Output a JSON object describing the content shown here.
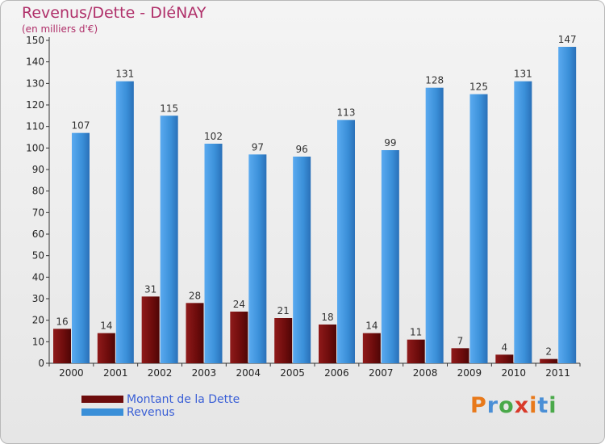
{
  "chart_data": {
    "type": "bar",
    "title": "Revenus/Dette - DIéNAY",
    "unit_label": "(en milliers d'€)",
    "categories": [
      "2000",
      "2001",
      "2002",
      "2003",
      "2004",
      "2005",
      "2006",
      "2007",
      "2008",
      "2009",
      "2010",
      "2011"
    ],
    "series": [
      {
        "name": "Montant de la Dette",
        "color": "#7a1010",
        "values": [
          16,
          14,
          31,
          28,
          24,
          21,
          18,
          14,
          11,
          7,
          4,
          2
        ]
      },
      {
        "name": "Revenus",
        "color": "#3a8fd8",
        "values": [
          107,
          131,
          115,
          102,
          97,
          96,
          113,
          99,
          128,
          125,
          131,
          147
        ]
      }
    ],
    "ylim": [
      0,
      150
    ],
    "yticks": [
      0,
      10,
      20,
      30,
      40,
      50,
      60,
      70,
      80,
      90,
      100,
      110,
      120,
      130,
      140,
      150
    ],
    "grid": false,
    "legend_position": "bottom-left",
    "data_labels": true
  },
  "logo": {
    "text": "Proxiti",
    "colors": [
      "#e8791a",
      "#4a8fd6",
      "#4aa94a",
      "#d93a2a"
    ]
  }
}
